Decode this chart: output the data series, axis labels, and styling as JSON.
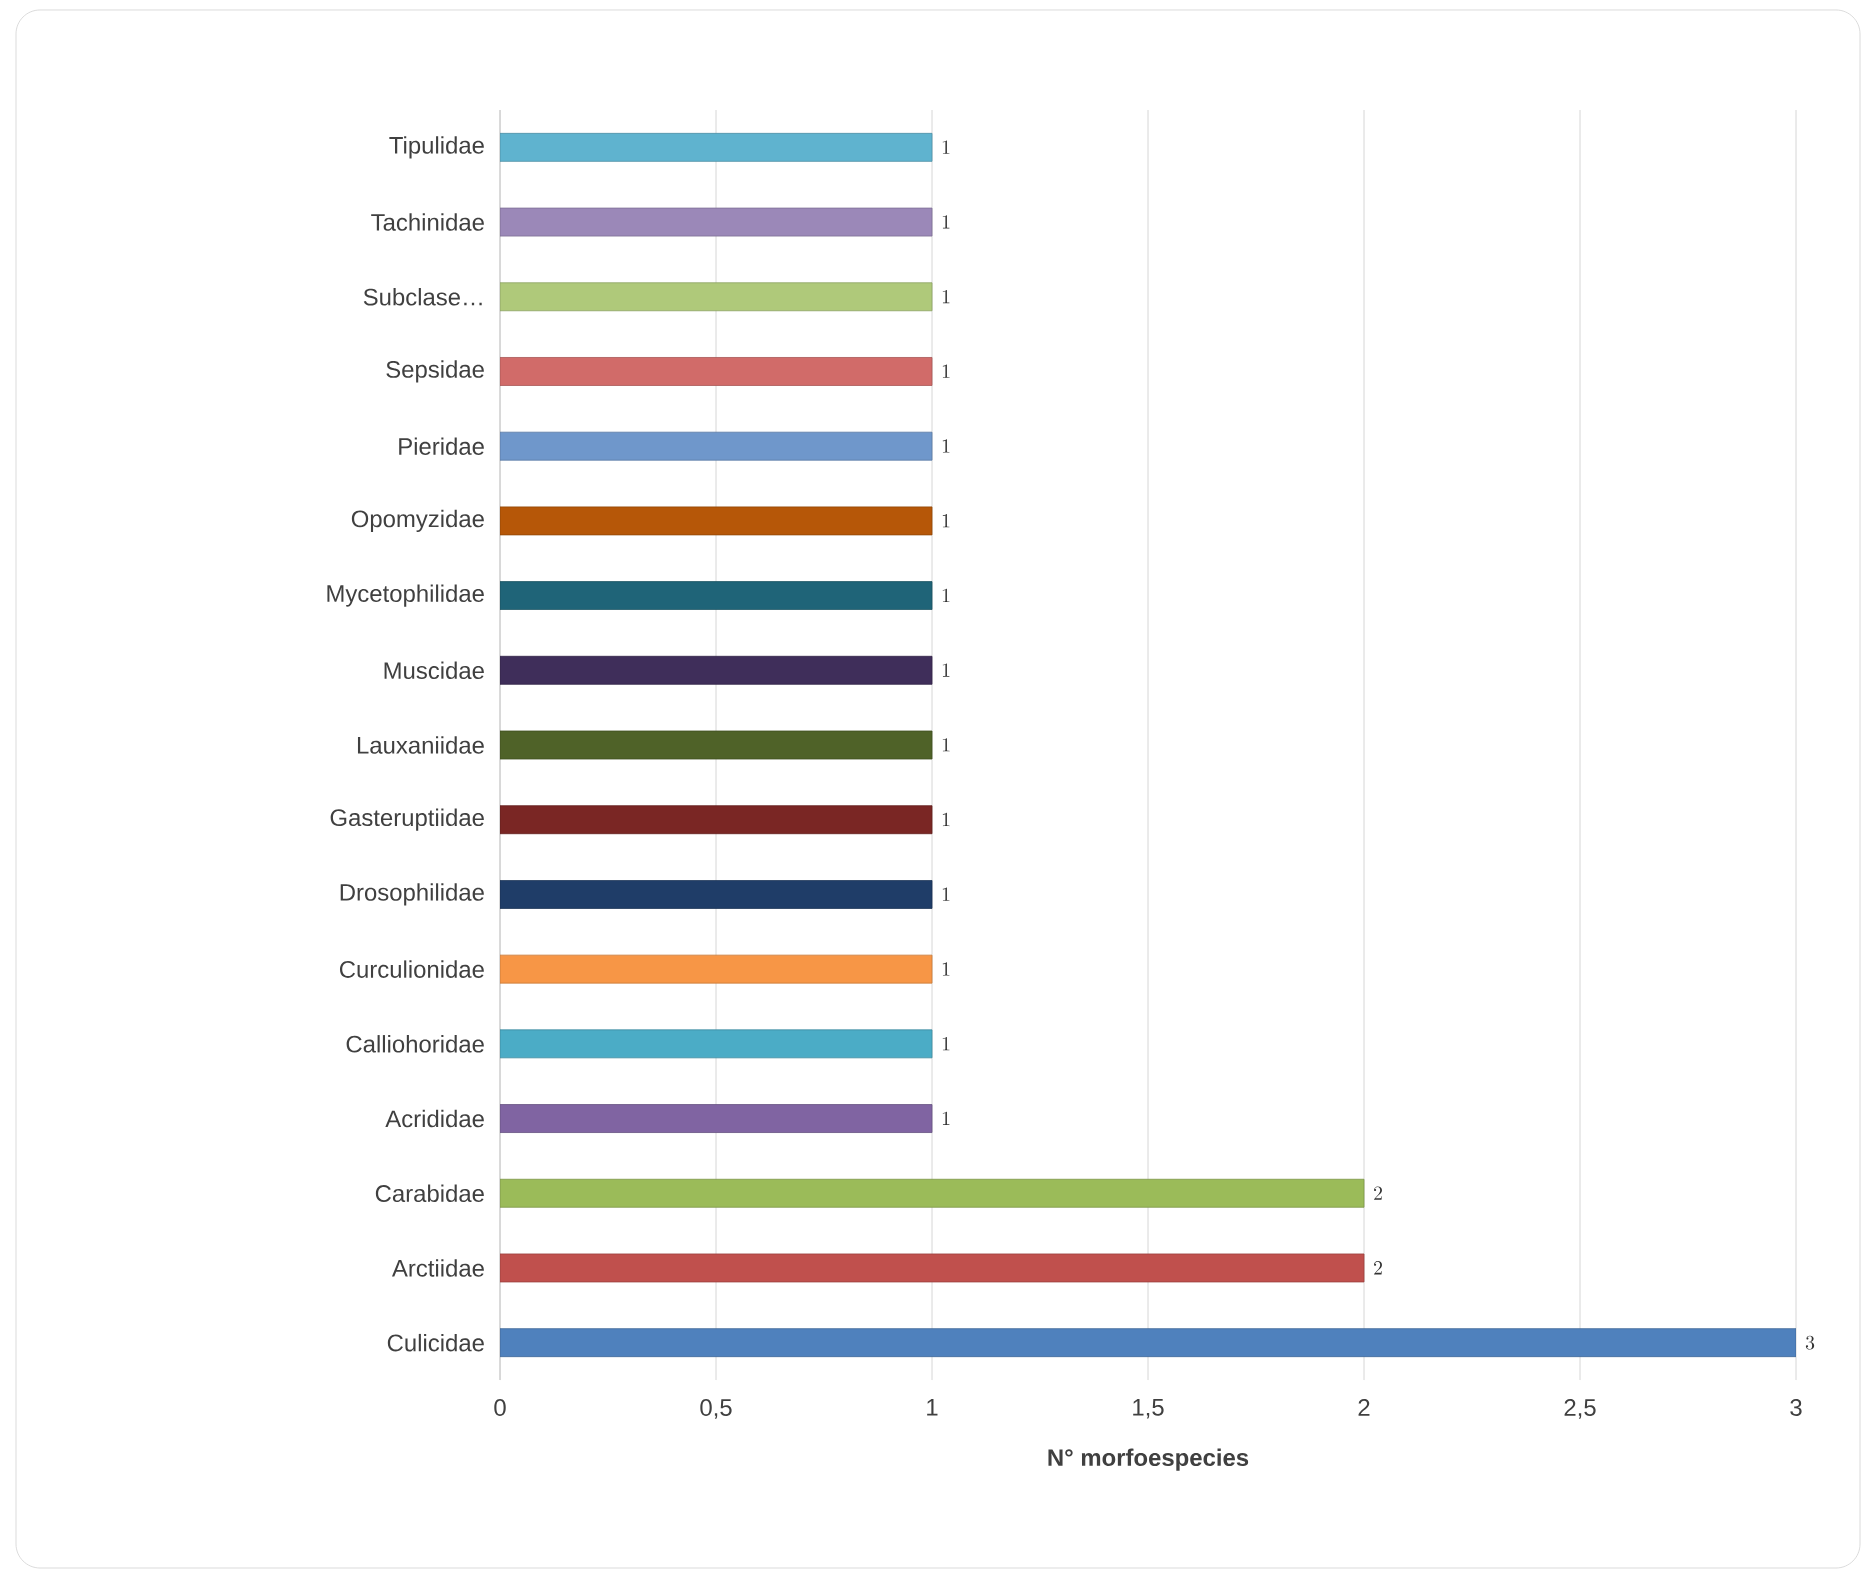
{
  "chart_data": {
    "type": "bar",
    "orientation": "horizontal",
    "xlabel": "N° morfoespecies",
    "categories": [
      "Tipulidae",
      "Tachinidae",
      "Subclase…",
      "Sepsidae",
      "Pieridae",
      "Opomyzidae",
      "Mycetophilidae",
      "Muscidae",
      "Lauxaniidae",
      "Gasteruptiidae",
      "Drosophilidae",
      "Curculionidae",
      "Calliohoridae",
      "Acrididae",
      "Carabidae",
      "Arctiidae",
      "Culicidae"
    ],
    "values": [
      1,
      1,
      1,
      1,
      1,
      1,
      1,
      1,
      1,
      1,
      1,
      1,
      1,
      1,
      2,
      2,
      3
    ],
    "colors": [
      "#5fb3cf",
      "#9b88b8",
      "#afc97a",
      "#d16b69",
      "#6f97cb",
      "#b65708",
      "#1f6478",
      "#3f2e5a",
      "#4f6228",
      "#7a2624",
      "#1f3d68",
      "#f79646",
      "#4bacc6",
      "#8064a2",
      "#9bbb59",
      "#c0504d",
      "#4f81bd"
    ],
    "xlim": [
      0,
      3
    ],
    "xticks": [
      0,
      {
        "value": 0.5,
        "label": "0,5"
      },
      1,
      {
        "value": 1.5,
        "label": "1,5"
      },
      2,
      {
        "value": 2.5,
        "label": "2,5"
      },
      3
    ],
    "grid": "x",
    "data_labels": true
  }
}
